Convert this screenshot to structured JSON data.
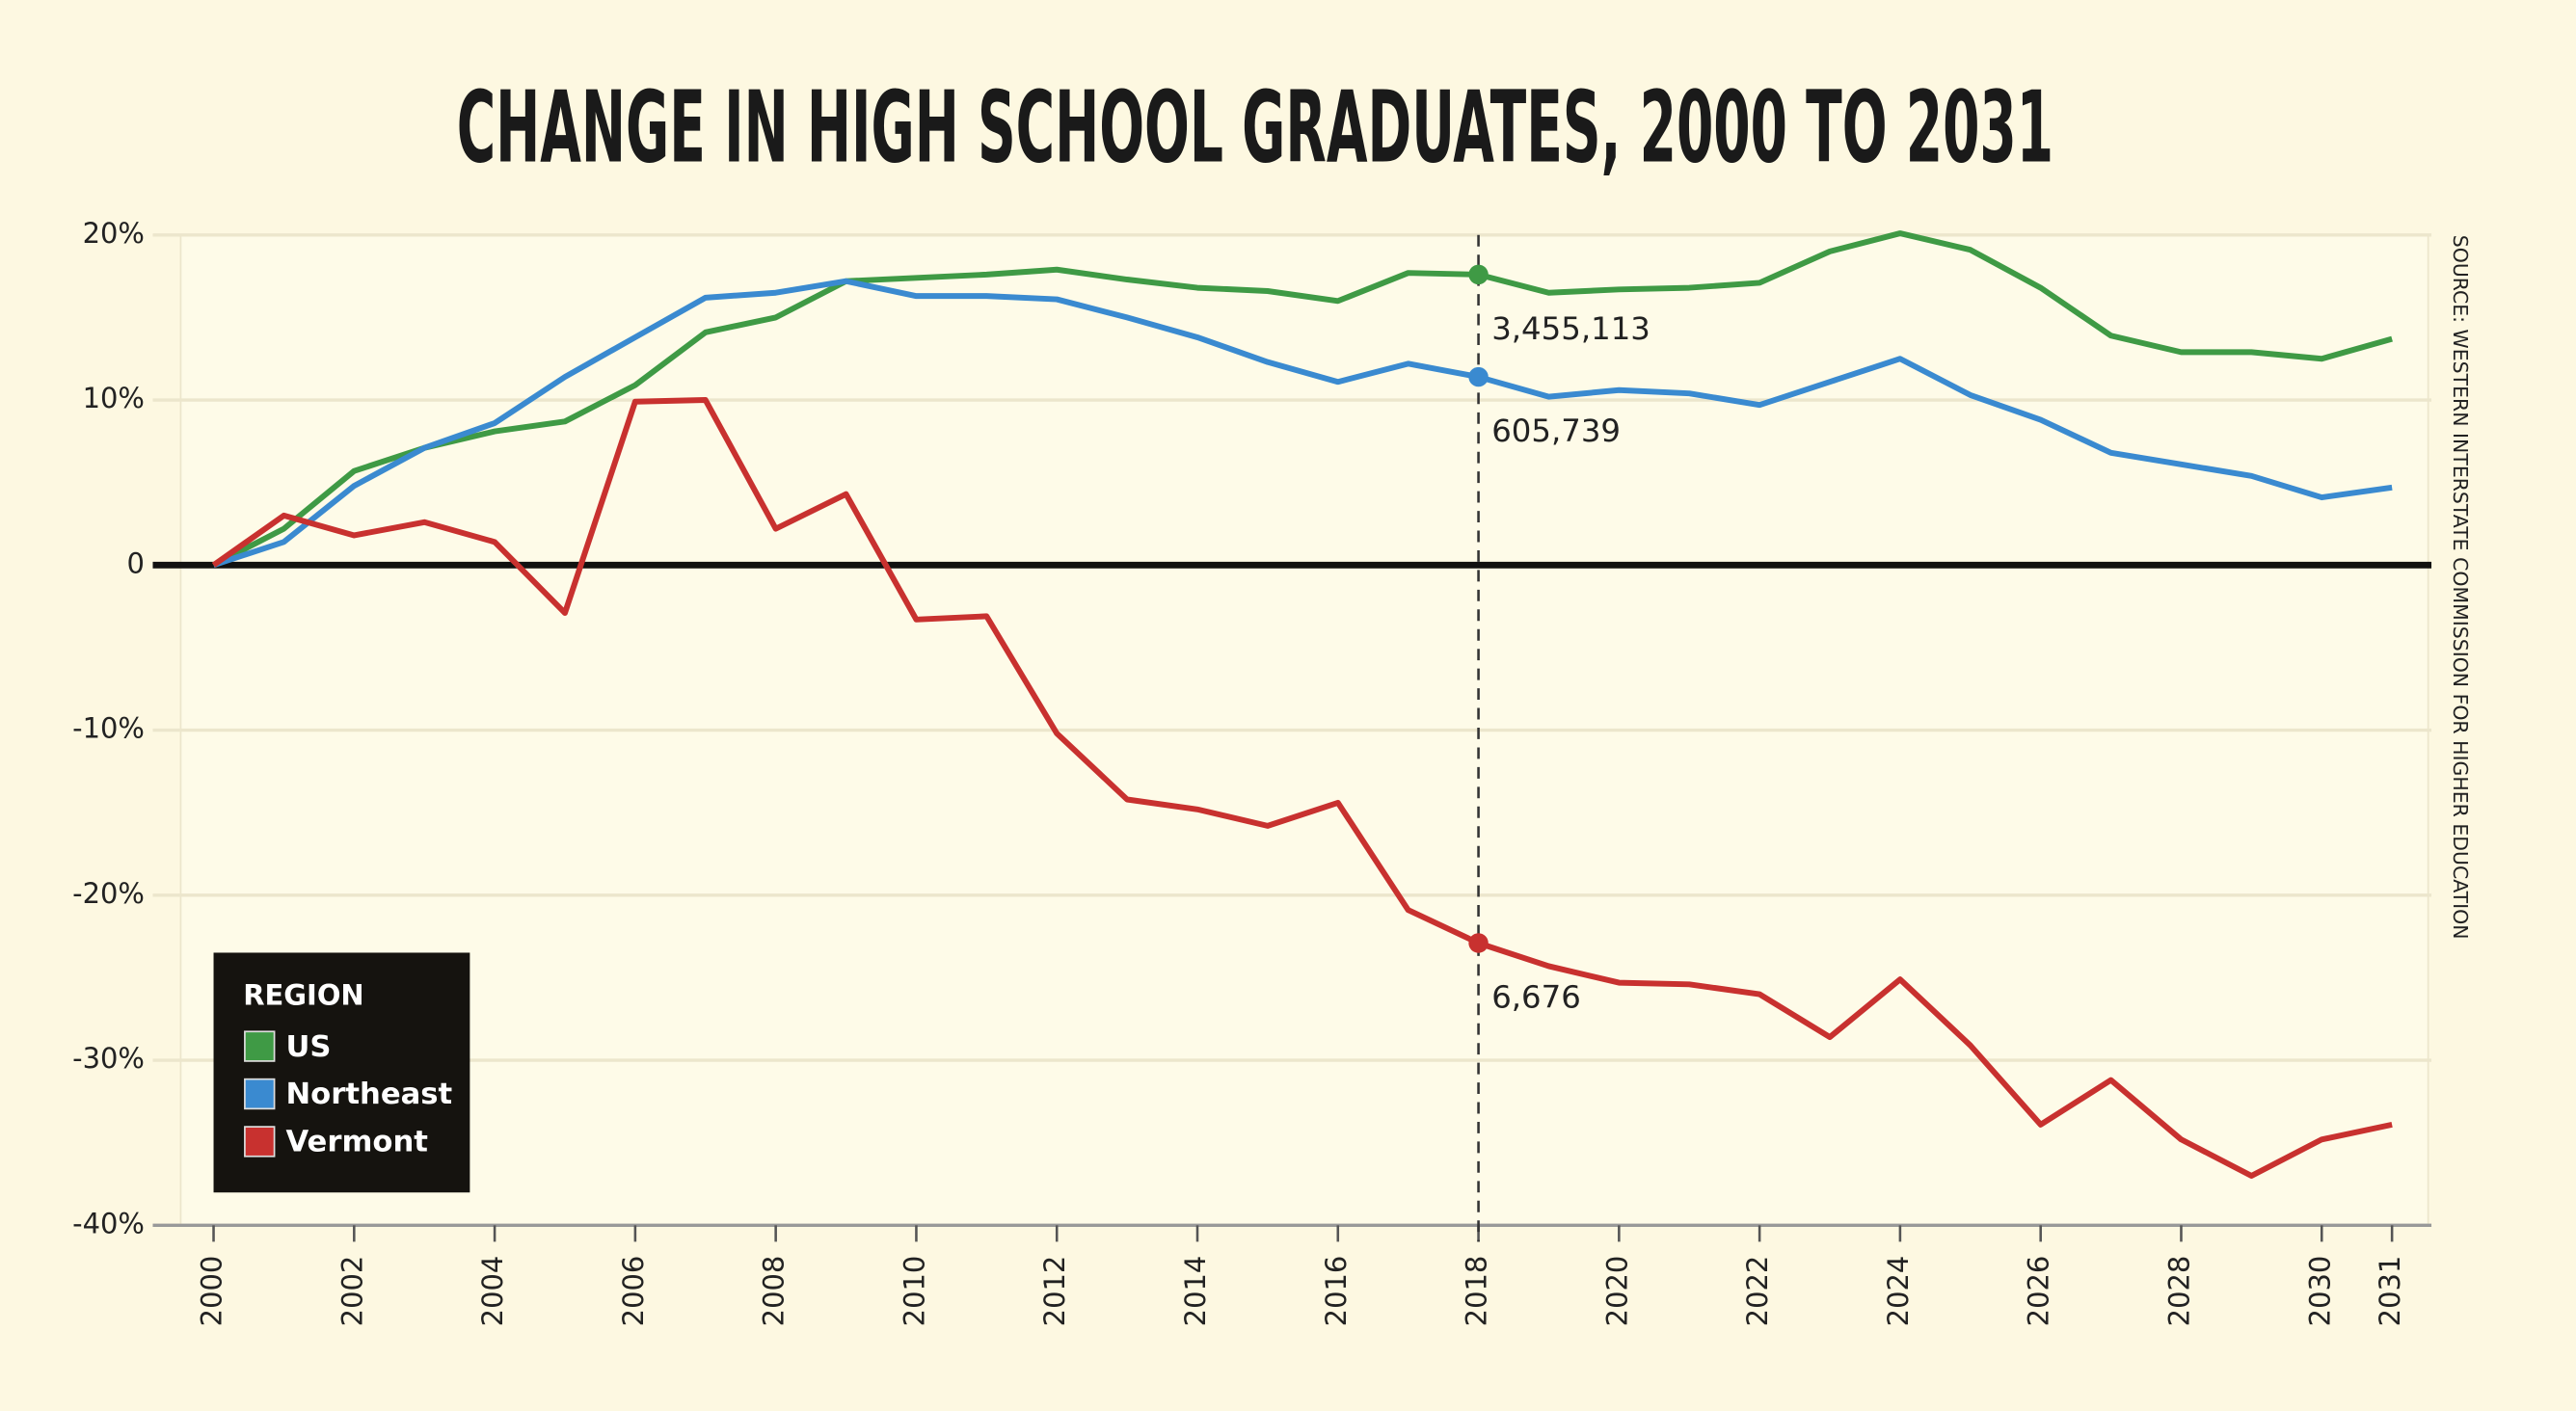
{
  "chart_data": {
    "type": "line",
    "title": "CHANGE IN HIGH SCHOOL GRADUATES, 2000 TO 2031",
    "source": "SOURCE: WESTERN INTERSTATE COMMISSION FOR HIGHER EDUCATION",
    "x": [
      2000,
      2001,
      2002,
      2003,
      2004,
      2005,
      2006,
      2007,
      2008,
      2009,
      2010,
      2011,
      2012,
      2013,
      2014,
      2015,
      2016,
      2017,
      2018,
      2019,
      2020,
      2021,
      2022,
      2023,
      2024,
      2025,
      2026,
      2027,
      2028,
      2029,
      2030,
      2031
    ],
    "series": [
      {
        "name": "US",
        "color": "#3f9a45",
        "values": [
          0,
          2.2,
          5.7,
          7.1,
          8.1,
          8.7,
          10.9,
          14.1,
          15.0,
          17.2,
          17.4,
          17.6,
          17.9,
          17.3,
          16.8,
          16.6,
          16.0,
          17.7,
          17.6,
          16.5,
          16.7,
          16.8,
          17.1,
          19.0,
          20.1,
          19.1,
          16.8,
          13.9,
          12.9,
          12.9,
          12.5,
          13.7
        ]
      },
      {
        "name": "Northeast",
        "color": "#3a8ad0",
        "values": [
          0,
          1.4,
          4.8,
          7.1,
          8.6,
          11.4,
          13.8,
          16.2,
          16.5,
          17.2,
          16.3,
          16.3,
          16.1,
          15.0,
          13.8,
          12.3,
          11.1,
          12.2,
          11.4,
          10.2,
          10.6,
          10.4,
          9.7,
          11.1,
          12.5,
          10.3,
          8.8,
          6.8,
          6.1,
          5.4,
          4.1,
          4.7
        ]
      },
      {
        "name": "Vermont",
        "color": "#c8312f",
        "values": [
          0,
          3.0,
          1.8,
          2.6,
          1.4,
          -2.9,
          9.9,
          10.0,
          2.2,
          4.3,
          -3.3,
          -3.1,
          -10.2,
          -14.2,
          -14.8,
          -15.8,
          -14.4,
          -20.9,
          -22.9,
          -24.3,
          -25.3,
          -25.4,
          -26.0,
          -28.6,
          -25.1,
          -29.1,
          -33.9,
          -31.2,
          -34.8,
          -37.0,
          -34.8,
          -33.9
        ]
      }
    ],
    "annotations": [
      {
        "x": 2018,
        "series": 0,
        "text": "3,455,113"
      },
      {
        "x": 2018,
        "series": 1,
        "text": "605,739"
      },
      {
        "x": 2018,
        "series": 2,
        "text": "6,676"
      }
    ],
    "xlim": [
      2000,
      2031
    ],
    "xticks": [
      2000,
      2002,
      2004,
      2006,
      2008,
      2010,
      2012,
      2014,
      2016,
      2018,
      2020,
      2022,
      2024,
      2026,
      2028,
      2030,
      2031
    ],
    "ylim": [
      -40,
      20
    ],
    "yticks": [
      {
        "value": -40,
        "label": "-40%"
      },
      {
        "value": -30,
        "label": "-30%"
      },
      {
        "value": -20,
        "label": "-20%"
      },
      {
        "value": -10,
        "label": "-10%"
      },
      0,
      {
        "value": 10,
        "label": "10%"
      },
      {
        "value": 20,
        "label": "20%"
      }
    ],
    "grid": true,
    "legend": {
      "title": "REGION",
      "position": "lower left"
    }
  }
}
